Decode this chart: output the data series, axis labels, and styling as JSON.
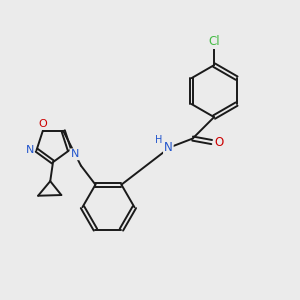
{
  "background_color": "#ebebeb",
  "bond_color": "#1a1a1a",
  "atom_colors": {
    "N": "#2255cc",
    "O": "#cc0000",
    "Cl": "#44bb44",
    "H": "#2255cc"
  },
  "font_size": 8.5,
  "lw": 1.4
}
